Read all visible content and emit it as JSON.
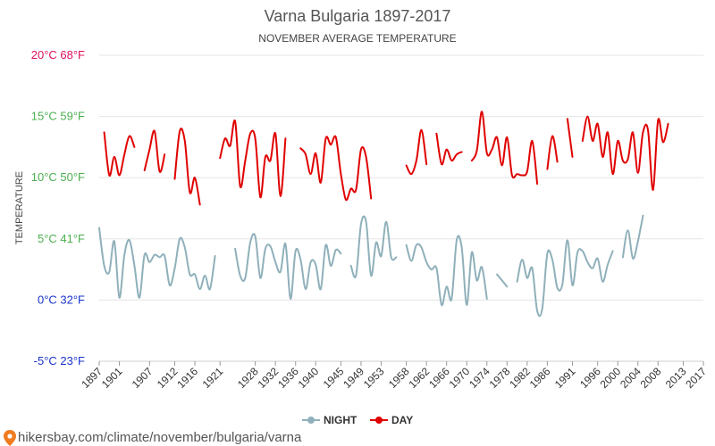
{
  "chart_data": {
    "type": "line",
    "title": "Varna Bulgaria 1897-2017",
    "subtitle": "NOVEMBER AVERAGE TEMPERATURE",
    "ylabel": "TEMPERATURE",
    "ylim": [
      -5,
      20
    ],
    "xlim": [
      1897,
      2017
    ],
    "grid": true,
    "legend_position": "bottom",
    "y_ticks": [
      {
        "value": 20,
        "label": "20°C 68°F",
        "color": "#e0115f"
      },
      {
        "value": 15,
        "label": "15°C 59°F",
        "color": "#4caf50"
      },
      {
        "value": 10,
        "label": "10°C 50°F",
        "color": "#4caf50"
      },
      {
        "value": 5,
        "label": "5°C 41°F",
        "color": "#4caf50"
      },
      {
        "value": 0,
        "label": "0°C 32°F",
        "color": "#1a33cc"
      },
      {
        "value": -5,
        "label": "-5°C 23°F",
        "color": "#1a33cc"
      }
    ],
    "x_ticks": [
      1897,
      1901,
      1907,
      1912,
      1916,
      1921,
      1928,
      1932,
      1936,
      1940,
      1945,
      1949,
      1953,
      1958,
      1962,
      1966,
      1970,
      1974,
      1978,
      1982,
      1986,
      1991,
      1996,
      2000,
      2004,
      2008,
      2013,
      2017
    ],
    "series": [
      {
        "name": "DAY",
        "color": "#e00000",
        "segments": [
          [
            [
              1898,
              13.7
            ],
            [
              1899,
              10.2
            ],
            [
              1900,
              11.7
            ],
            [
              1901,
              10.2
            ],
            [
              1902,
              11.9
            ],
            [
              1903,
              13.4
            ],
            [
              1904,
              12.5
            ]
          ],
          [
            [
              1906,
              10.6
            ],
            [
              1907,
              12.3
            ],
            [
              1908,
              13.8
            ],
            [
              1909,
              10.5
            ],
            [
              1910,
              11.9
            ]
          ],
          [
            [
              1912,
              9.9
            ],
            [
              1913,
              13.8
            ],
            [
              1914,
              13.0
            ],
            [
              1915,
              8.8
            ],
            [
              1916,
              10.0
            ],
            [
              1917,
              7.8
            ]
          ],
          [
            [
              1921,
              11.6
            ],
            [
              1922,
              13.2
            ],
            [
              1923,
              12.6
            ],
            [
              1924,
              14.6
            ],
            [
              1925,
              9.3
            ],
            [
              1926,
              11.4
            ],
            [
              1927,
              13.6
            ],
            [
              1928,
              13.2
            ],
            [
              1929,
              8.4
            ],
            [
              1930,
              11.7
            ],
            [
              1931,
              11.4
            ],
            [
              1932,
              13.6
            ],
            [
              1933,
              8.5
            ],
            [
              1934,
              13.2
            ]
          ],
          [
            [
              1937,
              12.4
            ],
            [
              1938,
              11.9
            ],
            [
              1939,
              10.3
            ],
            [
              1940,
              12.0
            ],
            [
              1941,
              9.6
            ],
            [
              1942,
              13.2
            ],
            [
              1943,
              12.7
            ],
            [
              1944,
              13.3
            ],
            [
              1945,
              10.3
            ],
            [
              1946,
              8.2
            ],
            [
              1947,
              9.1
            ],
            [
              1948,
              9.0
            ],
            [
              1949,
              12.3
            ],
            [
              1950,
              11.7
            ],
            [
              1951,
              8.3
            ]
          ],
          [
            [
              1958,
              11.0
            ],
            [
              1959,
              10.3
            ],
            [
              1960,
              11.4
            ],
            [
              1961,
              13.9
            ],
            [
              1962,
              11.1
            ]
          ],
          [
            [
              1964,
              13.6
            ],
            [
              1965,
              11.1
            ],
            [
              1966,
              12.3
            ],
            [
              1967,
              11.4
            ],
            [
              1968,
              11.9
            ],
            [
              1969,
              12.1
            ]
          ],
          [
            [
              1971,
              11.4
            ],
            [
              1972,
              12.2
            ],
            [
              1973,
              15.4
            ],
            [
              1974,
              12.0
            ],
            [
              1975,
              12.3
            ],
            [
              1976,
              13.3
            ],
            [
              1977,
              11.0
            ],
            [
              1978,
              13.3
            ],
            [
              1979,
              10.2
            ],
            [
              1980,
              10.3
            ],
            [
              1981,
              10.2
            ],
            [
              1982,
              10.5
            ],
            [
              1983,
              13.0
            ],
            [
              1984,
              9.5
            ]
          ],
          [
            [
              1986,
              10.7
            ],
            [
              1987,
              13.4
            ],
            [
              1988,
              11.3
            ]
          ],
          [
            [
              1990,
              14.8
            ],
            [
              1991,
              11.7
            ]
          ],
          [
            [
              1993,
              13.0
            ],
            [
              1994,
              15.0
            ],
            [
              1995,
              13.0
            ],
            [
              1996,
              14.4
            ],
            [
              1997,
              11.7
            ],
            [
              1998,
              13.7
            ],
            [
              1999,
              10.3
            ],
            [
              2000,
              13.0
            ],
            [
              2001,
              11.4
            ],
            [
              2002,
              11.5
            ],
            [
              2003,
              13.7
            ],
            [
              2004,
              10.4
            ],
            [
              2005,
              13.7
            ],
            [
              2006,
              13.9
            ],
            [
              2007,
              9.0
            ],
            [
              2008,
              14.7
            ],
            [
              2009,
              12.9
            ],
            [
              2010,
              14.4
            ]
          ]
        ]
      },
      {
        "name": "NIGHT",
        "color": "#8fb0ba",
        "segments": [
          [
            [
              1897,
              5.9
            ],
            [
              1898,
              2.8
            ],
            [
              1899,
              2.3
            ],
            [
              1900,
              4.8
            ],
            [
              1901,
              0.2
            ],
            [
              1902,
              3.7
            ],
            [
              1903,
              4.9
            ],
            [
              1904,
              2.8
            ],
            [
              1905,
              0.2
            ],
            [
              1906,
              3.7
            ],
            [
              1907,
              3.1
            ],
            [
              1908,
              3.7
            ],
            [
              1909,
              3.5
            ],
            [
              1910,
              3.6
            ],
            [
              1911,
              1.2
            ],
            [
              1912,
              2.6
            ],
            [
              1913,
              5.0
            ],
            [
              1914,
              4.3
            ],
            [
              1915,
              2.1
            ],
            [
              1916,
              2.1
            ],
            [
              1917,
              0.9
            ],
            [
              1918,
              2.0
            ],
            [
              1919,
              0.9
            ],
            [
              1920,
              3.6
            ]
          ],
          [
            [
              1924,
              4.2
            ],
            [
              1925,
              2.0
            ],
            [
              1926,
              1.8
            ],
            [
              1927,
              4.7
            ],
            [
              1928,
              5.2
            ],
            [
              1929,
              1.8
            ],
            [
              1930,
              4.2
            ],
            [
              1931,
              4.4
            ],
            [
              1932,
              3.1
            ],
            [
              1933,
              2.3
            ],
            [
              1934,
              4.6
            ],
            [
              1935,
              0.1
            ],
            [
              1936,
              4.0
            ],
            [
              1937,
              3.3
            ],
            [
              1938,
              0.9
            ],
            [
              1939,
              3.1
            ],
            [
              1940,
              2.9
            ],
            [
              1941,
              0.9
            ],
            [
              1942,
              4.5
            ],
            [
              1943,
              2.8
            ],
            [
              1944,
              4.1
            ],
            [
              1945,
              3.8
            ]
          ],
          [
            [
              1947,
              2.8
            ],
            [
              1948,
              2.0
            ],
            [
              1949,
              6.2
            ],
            [
              1950,
              6.4
            ],
            [
              1951,
              2.0
            ],
            [
              1952,
              4.7
            ],
            [
              1953,
              3.6
            ],
            [
              1954,
              6.4
            ],
            [
              1955,
              3.5
            ],
            [
              1956,
              3.5
            ]
          ],
          [
            [
              1958,
              4.5
            ],
            [
              1959,
              3.2
            ],
            [
              1960,
              4.5
            ],
            [
              1961,
              4.3
            ],
            [
              1962,
              3.1
            ],
            [
              1963,
              2.5
            ],
            [
              1964,
              2.6
            ],
            [
              1965,
              -0.4
            ],
            [
              1966,
              1.1
            ],
            [
              1967,
              0.1
            ],
            [
              1968,
              4.9
            ],
            [
              1969,
              4.3
            ],
            [
              1970,
              -0.4
            ],
            [
              1971,
              3.9
            ],
            [
              1972,
              1.6
            ],
            [
              1973,
              2.7
            ],
            [
              1974,
              0.1
            ]
          ],
          [
            [
              1976,
              2.1
            ],
            [
              1977,
              1.6
            ],
            [
              1978,
              1.1
            ]
          ],
          [
            [
              1980,
              1.5
            ],
            [
              1981,
              3.3
            ],
            [
              1982,
              1.8
            ],
            [
              1983,
              2.6
            ],
            [
              1984,
              -0.9
            ],
            [
              1985,
              -0.7
            ],
            [
              1986,
              3.8
            ],
            [
              1987,
              3.3
            ],
            [
              1988,
              1.0
            ],
            [
              1989,
              1.3
            ],
            [
              1990,
              4.9
            ],
            [
              1991,
              1.2
            ],
            [
              1992,
              3.9
            ],
            [
              1993,
              4.0
            ],
            [
              1994,
              3.1
            ],
            [
              1995,
              2.6
            ],
            [
              1996,
              3.4
            ],
            [
              1997,
              1.5
            ],
            [
              1998,
              2.9
            ],
            [
              1999,
              4.0
            ]
          ],
          [
            [
              2001,
              3.5
            ],
            [
              2002,
              5.7
            ],
            [
              2003,
              3.4
            ],
            [
              2004,
              4.8
            ],
            [
              2005,
              6.9
            ]
          ]
        ]
      }
    ]
  },
  "legend": {
    "items": [
      {
        "label": "NIGHT",
        "color": "#8fb0ba"
      },
      {
        "label": "DAY",
        "color": "#e00000"
      }
    ]
  },
  "footer": {
    "text": "hikersbay.com/climate/november/bulgaria/varna",
    "pin_color": "#f07c1f"
  }
}
